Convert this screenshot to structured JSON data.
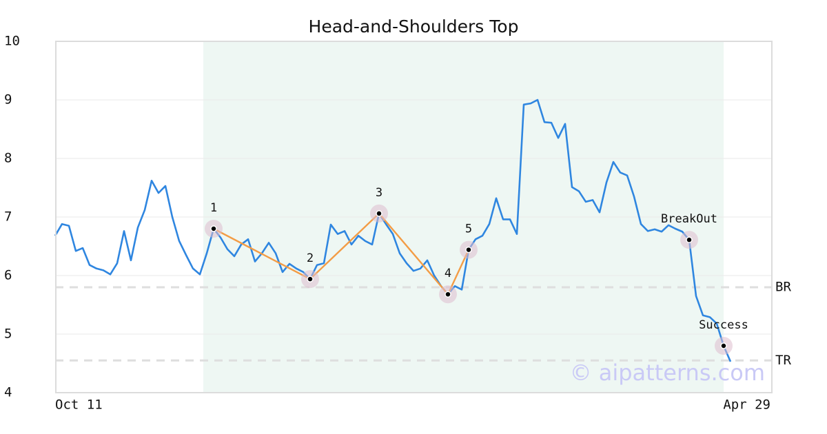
{
  "chart_data": {
    "type": "line",
    "title": "Head-and-Shoulders Top",
    "categories": [
      "Oct 11",
      null,
      null,
      null,
      null,
      null,
      null,
      null,
      null,
      null,
      null,
      null,
      null,
      null,
      null,
      null,
      null,
      null,
      null,
      null,
      null,
      null,
      null,
      null,
      null,
      null,
      null,
      null,
      null,
      null,
      null,
      null,
      null,
      null,
      null,
      null,
      null,
      null,
      null,
      null,
      null,
      null,
      null,
      null,
      null,
      null,
      null,
      null,
      null,
      null,
      null,
      null,
      null,
      null,
      null,
      null,
      null,
      null,
      null,
      null,
      null,
      null,
      null,
      null,
      null,
      null,
      null,
      null,
      null,
      null,
      null,
      null,
      null,
      null,
      null,
      null,
      null,
      null,
      null,
      null,
      null,
      null,
      null,
      null,
      null,
      null,
      null,
      null,
      null,
      null,
      null,
      null,
      null,
      null,
      null,
      null,
      null,
      null,
      null,
      null,
      null,
      null,
      null,
      null,
      "Apr 29"
    ],
    "series": [
      {
        "color": "#2f86e0",
        "values": [
          6.68,
          6.88,
          6.85,
          6.42,
          6.47,
          6.18,
          6.12,
          6.09,
          6.02,
          6.21,
          6.76,
          6.26,
          6.82,
          7.12,
          7.62,
          7.41,
          7.53,
          7.0,
          6.59,
          6.35,
          6.12,
          6.02,
          6.38,
          6.8,
          6.65,
          6.45,
          6.33,
          6.53,
          6.62,
          6.24,
          6.38,
          6.56,
          6.38,
          6.06,
          6.2,
          6.12,
          6.06,
          5.94,
          6.18,
          6.21,
          6.87,
          6.71,
          6.76,
          6.53,
          6.68,
          6.59,
          6.53,
          7.06,
          6.88,
          6.71,
          6.38,
          6.21,
          6.08,
          6.12,
          6.26,
          6.0,
          5.82,
          5.68,
          5.82,
          5.76,
          6.44,
          6.62,
          6.68,
          6.88,
          7.32,
          6.96,
          6.96,
          6.71,
          8.92,
          8.94,
          9.0,
          8.62,
          8.61,
          8.35,
          8.59,
          7.51,
          7.44,
          7.26,
          7.29,
          7.08,
          7.59,
          7.94,
          7.76,
          7.71,
          7.35,
          6.88,
          6.76,
          6.79,
          6.75,
          6.86,
          6.8,
          6.75,
          6.61,
          5.65,
          5.32,
          5.29,
          5.18,
          4.8,
          4.53,
          null,
          null,
          null,
          null,
          null,
          null
        ]
      }
    ],
    "ylim": [
      4,
      10
    ],
    "yticks": [
      4,
      5,
      6,
      7,
      8,
      9,
      10
    ],
    "grid": true,
    "shaded_range": [
      21.5,
      97
    ],
    "shade_color": "#eef7f3",
    "pattern_color": "#f39c45",
    "pattern_points": [
      {
        "label": "1",
        "index": 23,
        "value": 6.8
      },
      {
        "label": "2",
        "index": 37,
        "value": 5.94
      },
      {
        "label": "3",
        "index": 47,
        "value": 7.06
      },
      {
        "label": "4",
        "index": 57,
        "value": 5.68
      },
      {
        "label": "5",
        "index": 60,
        "value": 6.44
      }
    ],
    "signal_points": [
      {
        "label": "BreakOut",
        "index": 92,
        "value": 6.61
      },
      {
        "label": "Success",
        "index": 97,
        "value": 4.8
      }
    ],
    "reference_lines": [
      {
        "label": "BR",
        "value": 5.8
      },
      {
        "label": "TR",
        "value": 4.55
      }
    ],
    "watermark": "© aipatterns.com"
  }
}
